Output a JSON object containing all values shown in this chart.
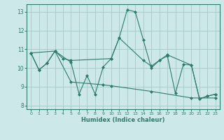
{
  "xlabel": "Humidex (Indice chaleur)",
  "background_color": "#cce8e8",
  "grid_color": "#aacccc",
  "line_color": "#2e7b6e",
  "line1_x": [
    0,
    1,
    2,
    3,
    5,
    6,
    7,
    8,
    9,
    10,
    11,
    12,
    13,
    14,
    15,
    16,
    17,
    20,
    21,
    22,
    23
  ],
  "line1_y": [
    10.8,
    9.9,
    10.25,
    10.9,
    10.3,
    8.6,
    9.6,
    8.6,
    10.05,
    10.5,
    11.6,
    13.1,
    13.0,
    11.5,
    10.0,
    10.4,
    10.7,
    10.15,
    8.35,
    8.5,
    8.6
  ],
  "line2_x": [
    0,
    1,
    2,
    3,
    4,
    5,
    10,
    11,
    14,
    15,
    16,
    17,
    18,
    19,
    20,
    21,
    22,
    23
  ],
  "line2_y": [
    10.8,
    9.9,
    10.25,
    10.9,
    10.5,
    10.4,
    10.5,
    11.6,
    10.4,
    10.1,
    10.4,
    10.65,
    8.65,
    10.2,
    10.15,
    8.35,
    8.5,
    8.6
  ],
  "line3_x": [
    0,
    3,
    5,
    9,
    10,
    15,
    20,
    23
  ],
  "line3_y": [
    10.8,
    10.9,
    9.25,
    9.1,
    9.05,
    8.75,
    8.4,
    8.4
  ],
  "xlim": [
    0,
    23
  ],
  "ylim": [
    7.8,
    13.4
  ],
  "yticks": [
    8,
    9,
    10,
    11,
    12,
    13
  ],
  "xticks": [
    0,
    1,
    2,
    3,
    4,
    5,
    6,
    7,
    8,
    9,
    10,
    11,
    12,
    13,
    14,
    15,
    16,
    17,
    18,
    19,
    20,
    21,
    22,
    23
  ]
}
